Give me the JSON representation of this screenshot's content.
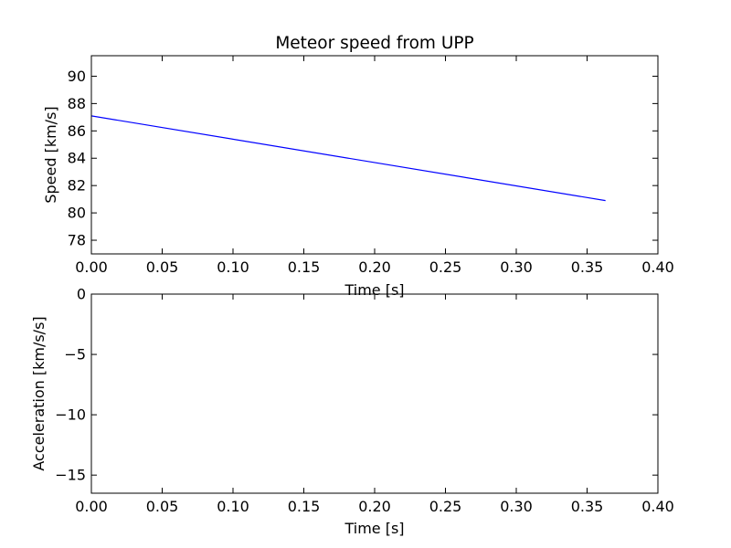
{
  "chart_data": [
    {
      "type": "line",
      "title": "Meteor speed from  UPP",
      "xlabel": "Time [s]",
      "ylabel": "Speed [km/s]",
      "xlim": [
        0.0,
        0.4
      ],
      "ylim": [
        77.0,
        91.5
      ],
      "xticks": [
        0.0,
        0.05,
        0.1,
        0.15,
        0.2,
        0.25,
        0.3,
        0.35,
        0.4
      ],
      "xtick_labels": [
        "0.00",
        "0.05",
        "0.10",
        "0.15",
        "0.20",
        "0.25",
        "0.30",
        "0.35",
        "0.40"
      ],
      "yticks": [
        78,
        80,
        82,
        84,
        86,
        88,
        90
      ],
      "ytick_labels": [
        "78",
        "80",
        "82",
        "84",
        "86",
        "88",
        "90"
      ],
      "grid": false,
      "series": [
        {
          "color": "#0000ff",
          "x": [
            0.0,
            0.363
          ],
          "y": [
            87.1,
            80.9
          ]
        }
      ]
    },
    {
      "type": "line",
      "title": "",
      "xlabel": "Time [s]",
      "ylabel": "Acceleration [km/s/s]",
      "xlim": [
        0.0,
        0.4
      ],
      "ylim": [
        -16.5,
        0.0
      ],
      "xticks": [
        0.0,
        0.05,
        0.1,
        0.15,
        0.2,
        0.25,
        0.3,
        0.35,
        0.4
      ],
      "xtick_labels": [
        "0.00",
        "0.05",
        "0.10",
        "0.15",
        "0.20",
        "0.25",
        "0.30",
        "0.35",
        "0.40"
      ],
      "yticks": [
        0,
        -5,
        -10,
        -15
      ],
      "ytick_labels": [
        "0",
        "−5",
        "−10",
        "−15"
      ],
      "grid": false,
      "series": []
    }
  ]
}
